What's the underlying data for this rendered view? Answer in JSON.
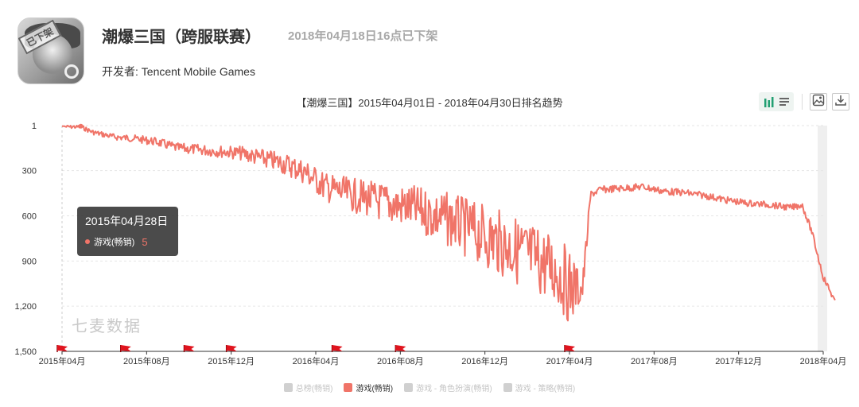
{
  "app": {
    "title": "潮爆三国（跨服联赛）",
    "status": "2018年04月18日16点已下架",
    "developer_label": "开发者: Tencent Mobile Games",
    "icon_stamp": "已下架"
  },
  "toolbar": {
    "icons": [
      "bar-chart-icon",
      "list-icon",
      "image-icon",
      "download-icon"
    ]
  },
  "tooltip": {
    "date": "2015年04月28日",
    "series": "游戏(畅销)",
    "value": "5"
  },
  "watermark": "七麦数据",
  "colors": {
    "series": "#f07468",
    "flag": "#e0141e",
    "legend_inactive": "#d0d0d0",
    "status_gray": "#a8a8a8"
  },
  "chart_data": {
    "type": "line",
    "title": "【潮爆三国】2015年04月01日 - 2018年04月30日排名趋势",
    "y_axis": {
      "ticks": [
        "1",
        "300",
        "600",
        "900",
        "1,200",
        "1,500"
      ],
      "range": [
        1,
        1500
      ],
      "inverted": true
    },
    "x_axis": {
      "ticks": [
        "2015年04月",
        "2015年08月",
        "2015年12月",
        "2016年04月",
        "2016年08月",
        "2016年12月",
        "2017年04月",
        "2017年08月",
        "2017年12月",
        "2018年04月"
      ],
      "range": [
        "2015-04",
        "2018-04"
      ]
    },
    "legend": [
      {
        "name": "总榜(畅销)",
        "active": false
      },
      {
        "name": "游戏(畅销)",
        "active": true
      },
      {
        "name": "游戏 - 角色扮演(畅销)",
        "active": false
      },
      {
        "name": "游戏 - 策略(畅销)",
        "active": false
      }
    ],
    "series": [
      {
        "name": "游戏(畅销)",
        "points": [
          [
            "2015-04-01",
            5
          ],
          [
            "2015-04-28",
            5
          ],
          [
            "2015-05-15",
            40
          ],
          [
            "2015-06-15",
            70
          ],
          [
            "2015-07-15",
            80
          ],
          [
            "2015-08-15",
            100
          ],
          [
            "2015-09-15",
            140
          ],
          [
            "2015-10-15",
            150
          ],
          [
            "2015-11-15",
            160
          ],
          [
            "2015-12-15",
            170
          ],
          [
            "2016-01-15",
            200
          ],
          [
            "2016-02-15",
            230
          ],
          [
            "2016-03-15",
            280
          ],
          [
            "2016-04-15",
            380
          ],
          [
            "2016-05-15",
            420
          ],
          [
            "2016-06-15",
            450
          ],
          [
            "2016-07-15",
            480
          ],
          [
            "2016-08-15",
            500
          ],
          [
            "2016-09-15",
            540
          ],
          [
            "2016-10-15",
            580
          ],
          [
            "2016-11-15",
            640
          ],
          [
            "2016-12-15",
            700
          ],
          [
            "2017-01-15",
            760
          ],
          [
            "2017-02-15",
            820
          ],
          [
            "2017-03-15",
            900
          ],
          [
            "2017-04-01",
            1000
          ],
          [
            "2017-04-20",
            1050
          ],
          [
            "2017-05-01",
            450
          ],
          [
            "2017-05-15",
            420
          ],
          [
            "2017-06-15",
            410
          ],
          [
            "2017-07-15",
            400
          ],
          [
            "2017-08-15",
            430
          ],
          [
            "2017-09-15",
            440
          ],
          [
            "2017-10-15",
            460
          ],
          [
            "2017-11-15",
            490
          ],
          [
            "2017-12-15",
            510
          ],
          [
            "2018-01-15",
            520
          ],
          [
            "2018-02-15",
            540
          ],
          [
            "2018-03-01",
            520
          ],
          [
            "2018-03-15",
            700
          ],
          [
            "2018-04-01",
            1000
          ],
          [
            "2018-04-18",
            1160
          ]
        ],
        "noise_amplitude": [
          [
            "2015-04-01",
            15
          ],
          [
            "2015-12-01",
            60
          ],
          [
            "2016-04-01",
            130
          ],
          [
            "2016-08-01",
            200
          ],
          [
            "2016-12-01",
            300
          ],
          [
            "2017-04-01",
            350
          ],
          [
            "2017-05-01",
            35
          ],
          [
            "2018-03-01",
            30
          ]
        ]
      }
    ],
    "flags": [
      "2015-04",
      "2015-07",
      "2015-10",
      "2015-12",
      "2016-05",
      "2016-08",
      "2017-04"
    ]
  }
}
